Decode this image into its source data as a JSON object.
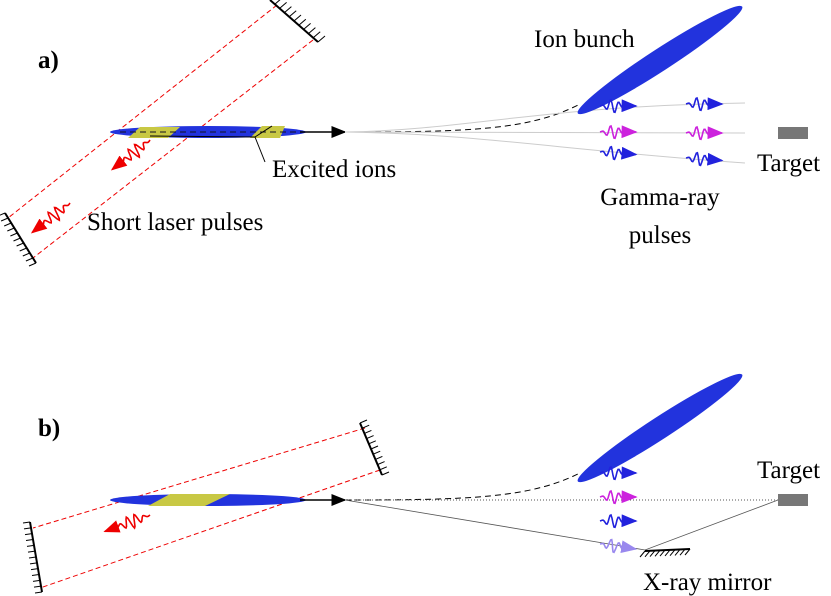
{
  "panel_a": {
    "label": "a)",
    "ion_bunch": "Ion bunch",
    "excited_ions": "Excited ions",
    "laser": "Short laser pulses",
    "gamma": [
      "Gamma-ray",
      "pulses"
    ],
    "target": "Target"
  },
  "panel_b": {
    "label": "b)",
    "target": "Target",
    "mirror": "X-ray mirror"
  }
}
